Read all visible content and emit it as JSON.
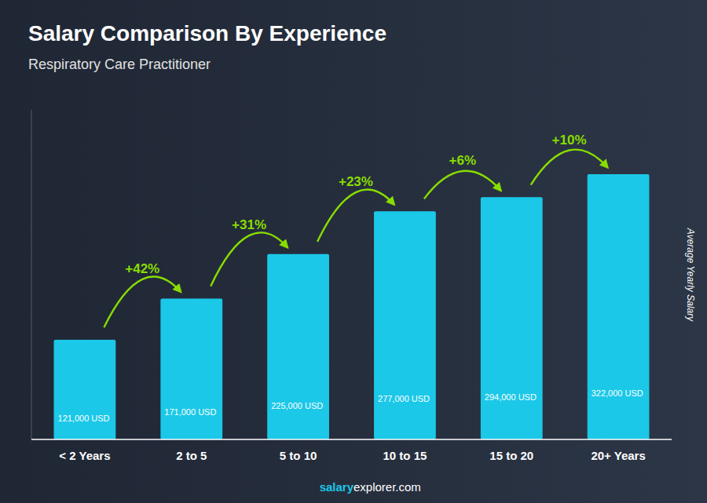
{
  "chart_data": {
    "type": "bar",
    "title": "Salary Comparison By Experience",
    "subtitle": "Respiratory Care Practitioner",
    "ylabel": "Average Yearly Salary",
    "categories": [
      "< 2 Years",
      "2 to 5",
      "5 to 10",
      "10 to 15",
      "15 to 20",
      "20+ Years"
    ],
    "values": [
      121000,
      171000,
      225000,
      277000,
      294000,
      322000
    ],
    "value_labels": [
      "121,000 USD",
      "171,000 USD",
      "225,000 USD",
      "277,000 USD",
      "294,000 USD",
      "322,000 USD"
    ],
    "data_labels": true,
    "color": "#1bc8e8",
    "ylim": [
      0,
      400000
    ],
    "tick_labels": "x",
    "annotations": {
      "texts": [
        null,
        "+42%",
        "+31%",
        "+23%",
        "+6%",
        "+10%"
      ],
      "color": "#88dd00"
    },
    "footer": [
      "salary",
      "explorer.com"
    ]
  }
}
